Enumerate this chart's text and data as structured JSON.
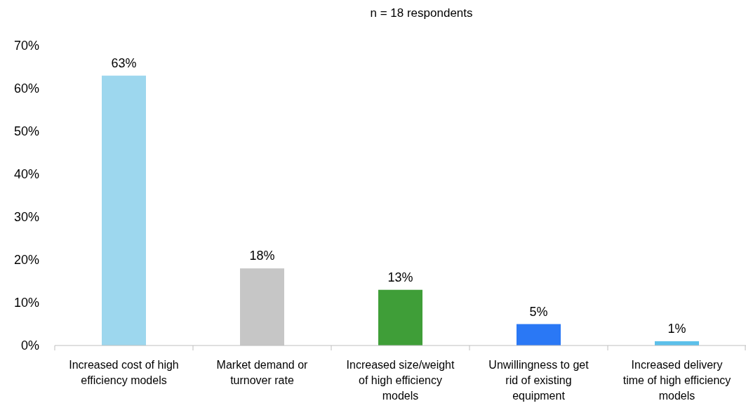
{
  "chart_data": {
    "type": "bar",
    "title": "n = 18 respondents",
    "categories": [
      "Increased cost of high efficiency models",
      "Market demand or turnover rate",
      "Increased size/weight of high efficiency models",
      "Unwillingness to get rid of existing equipment",
      "Increased delivery time of high efficiency models"
    ],
    "values": [
      63,
      18,
      13,
      5,
      1
    ],
    "colors": [
      "#9dd7ee",
      "#c6c6c6",
      "#3f9e38",
      "#2a78f5",
      "#5cc0ea"
    ],
    "value_labels": [
      "63%",
      "18%",
      "13%",
      "5%",
      "1%"
    ],
    "ylim": [
      0,
      70
    ],
    "yticks": [
      {
        "value": 0,
        "label": "0%"
      },
      {
        "value": 10,
        "label": "10%"
      },
      {
        "value": 20,
        "label": "20%"
      },
      {
        "value": 30,
        "label": "30%"
      },
      {
        "value": 40,
        "label": "40%"
      },
      {
        "value": 50,
        "label": "50%"
      },
      {
        "value": 60,
        "label": "60%"
      },
      {
        "value": 70,
        "label": "70%"
      }
    ],
    "grid": false
  }
}
